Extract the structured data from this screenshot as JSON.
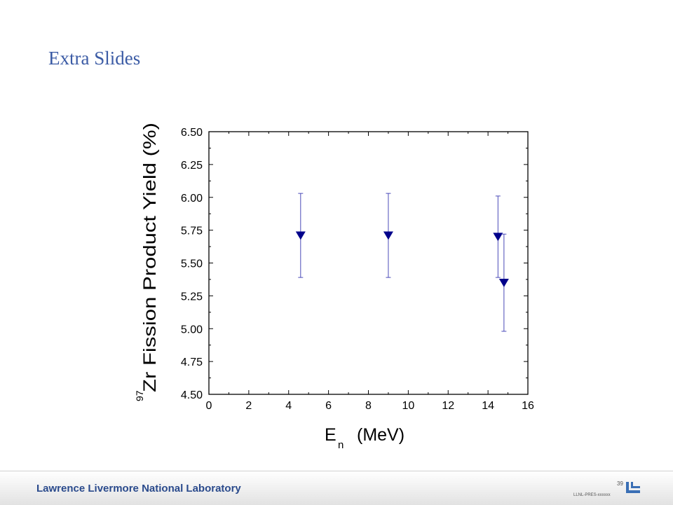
{
  "slide": {
    "title": "Extra Slides",
    "footer_text": "Lawrence Livermore National Laboratory",
    "page_number": "39",
    "doc_id": "LLNL-PRES-xxxxxx"
  },
  "colors": {
    "title": "#3b5ba5",
    "footer_text": "#2a4a8c",
    "marker": "#00008b",
    "errorbar": "#4a4ab8",
    "logo": "#3a6fb5"
  },
  "chart_data": {
    "type": "scatter",
    "title": "",
    "xlabel_main": "E",
    "xlabel_sub": "n",
    "xlabel_unit": "(MeV)",
    "ylabel_sup": "97",
    "ylabel_main": "Zr Fission Product Yield (%)",
    "xlim": [
      0,
      16
    ],
    "ylim": [
      4.5,
      6.5
    ],
    "xticks": [
      0,
      2,
      4,
      6,
      8,
      10,
      12,
      14,
      16
    ],
    "xtick_labels": [
      "0",
      "2",
      "4",
      "6",
      "8",
      "10",
      "12",
      "14",
      "16"
    ],
    "yticks": [
      4.5,
      4.75,
      5.0,
      5.25,
      5.5,
      5.75,
      6.0,
      6.25,
      6.5
    ],
    "ytick_labels": [
      "4.50",
      "4.75",
      "5.00",
      "5.25",
      "5.50",
      "5.75",
      "6.00",
      "6.25",
      "6.50"
    ],
    "grid": false,
    "marker": "triangle-down",
    "points": [
      {
        "x": 4.6,
        "y": 5.71,
        "err": 0.32
      },
      {
        "x": 9.0,
        "y": 5.71,
        "err": 0.32
      },
      {
        "x": 14.5,
        "y": 5.7,
        "err": 0.31
      },
      {
        "x": 14.8,
        "y": 5.35,
        "err": 0.37
      }
    ]
  }
}
